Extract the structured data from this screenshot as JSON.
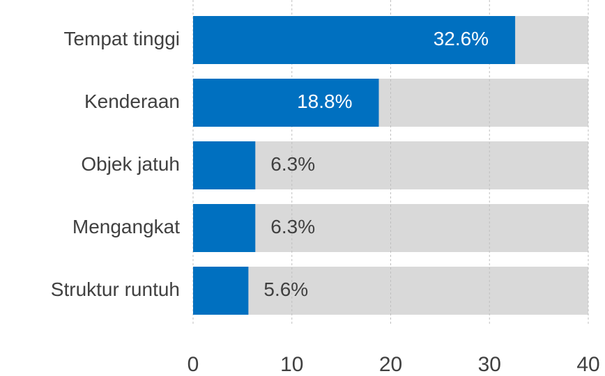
{
  "chart_data": {
    "type": "bar",
    "orientation": "horizontal",
    "categories": [
      "Tempat tinggi",
      "Kenderaan",
      "Objek jatuh",
      "Mengangkat",
      "Struktur runtuh"
    ],
    "values": [
      32.6,
      18.8,
      6.3,
      6.3,
      5.6
    ],
    "value_labels": [
      "32.6%",
      "18.8%",
      "6.3%",
      "6.3%",
      "5.6%"
    ],
    "color": "#0070c0",
    "track_color": "#d9d9d9",
    "xlim": [
      0,
      40
    ],
    "xticks": [
      0,
      10,
      20,
      30,
      40
    ],
    "grid": true
  }
}
